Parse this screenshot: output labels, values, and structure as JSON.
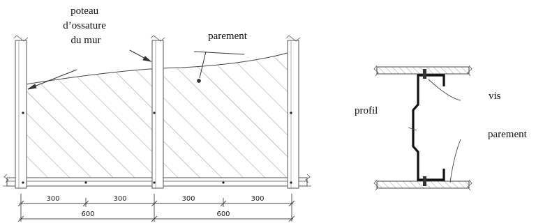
{
  "elevation": {
    "label_stud": [
      "poteau",
      "d’ossature",
      "du mur"
    ],
    "label_sheathing": "parement",
    "dims_half": [
      "300",
      "300",
      "300",
      "300"
    ],
    "dims_full": [
      "600",
      "600"
    ]
  },
  "section": {
    "label_screw": "vis",
    "label_profile": "profil",
    "label_sheathing": "parement"
  }
}
